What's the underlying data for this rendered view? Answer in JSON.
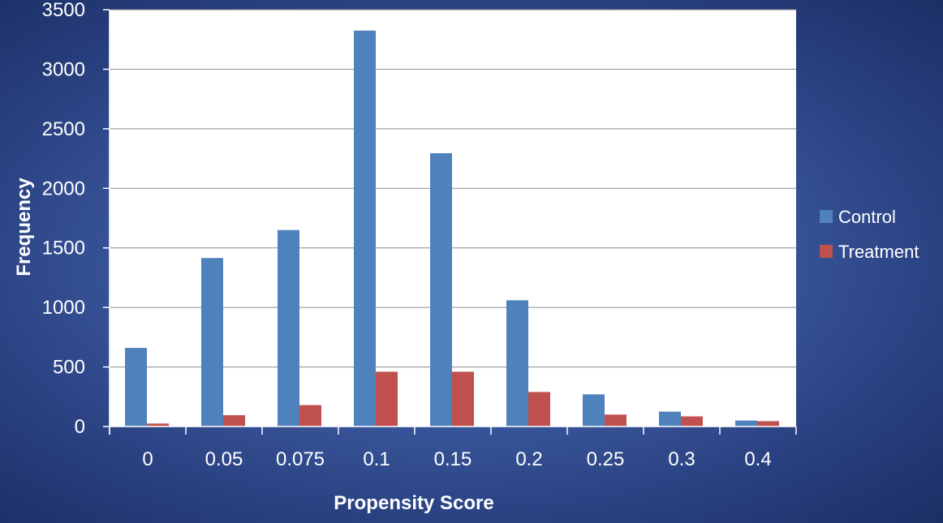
{
  "chart_data": {
    "type": "bar",
    "title": "",
    "xlabel": "Propensity Score",
    "ylabel": "Frequency",
    "categories": [
      "0",
      "0.05",
      "0.075",
      "0.1",
      "0.15",
      "0.2",
      "0.25",
      "0.3",
      "0.4"
    ],
    "series": [
      {
        "name": "Control",
        "color": "#4f81bd",
        "values": [
          660,
          1415,
          1650,
          3325,
          2295,
          1060,
          270,
          125,
          50
        ]
      },
      {
        "name": "Treatment",
        "color": "#c0504d",
        "values": [
          25,
          95,
          180,
          460,
          460,
          290,
          100,
          85,
          45
        ]
      }
    ],
    "ylim": [
      0,
      3500
    ],
    "yticks": [
      0,
      500,
      1000,
      1500,
      2000,
      2500,
      3000,
      3500
    ],
    "grid": true,
    "legend_position": "right"
  }
}
